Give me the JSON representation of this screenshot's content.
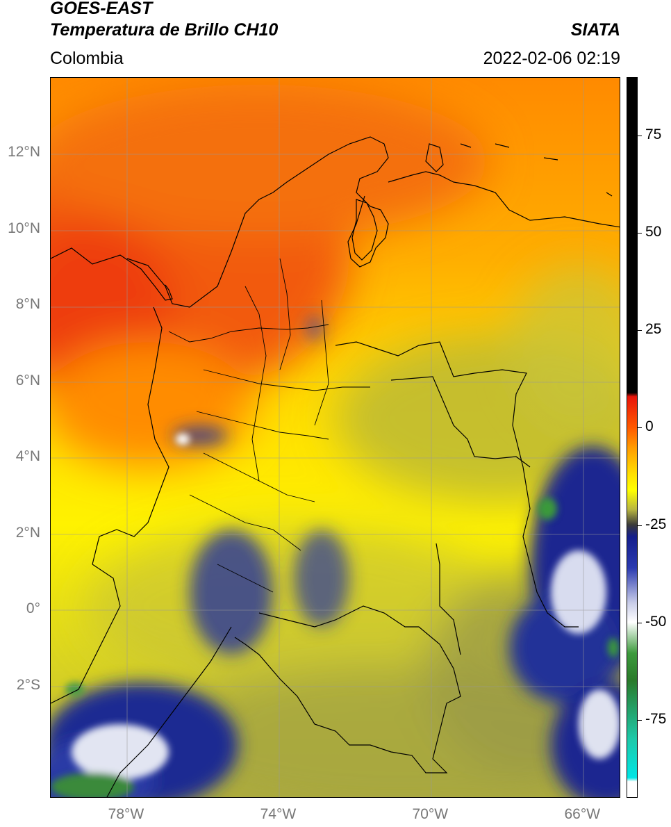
{
  "header": {
    "satellite": "GOES-EAST",
    "product": "Temperatura de Brillo CH10",
    "agency": "SIATA",
    "region": "Colombia",
    "timestamp": "2022-02-06 02:19"
  },
  "map": {
    "extent": {
      "lon_min": -80,
      "lon_max": -65,
      "lat_min": -5,
      "lat_max": 14
    },
    "lat_ticks": [
      {
        "value": 12,
        "label": "12°N"
      },
      {
        "value": 10,
        "label": "10°N"
      },
      {
        "value": 8,
        "label": "8°N"
      },
      {
        "value": 6,
        "label": "6°N"
      },
      {
        "value": 4,
        "label": "4°N"
      },
      {
        "value": 2,
        "label": "2°N"
      },
      {
        "value": 0,
        "label": "0°"
      },
      {
        "value": -2,
        "label": "2°S"
      }
    ],
    "lon_ticks": [
      {
        "value": -78,
        "label": "78°W"
      },
      {
        "value": -74,
        "label": "74°W"
      },
      {
        "value": -70,
        "label": "70°W"
      },
      {
        "value": -66,
        "label": "66°W"
      }
    ],
    "grid": true
  },
  "colorbar": {
    "range": [
      -95,
      90
    ],
    "ticks": [
      {
        "value": 75,
        "label": "75"
      },
      {
        "value": 50,
        "label": "50"
      },
      {
        "value": 25,
        "label": "25"
      },
      {
        "value": 0,
        "label": "0"
      },
      {
        "value": -25,
        "label": "-25"
      },
      {
        "value": -50,
        "label": "-50"
      },
      {
        "value": -75,
        "label": "-75"
      }
    ],
    "stops": [
      {
        "value": 90,
        "color": "#000000"
      },
      {
        "value": 9,
        "color": "#000000"
      },
      {
        "value": 8,
        "color": "#e8140a"
      },
      {
        "value": 0,
        "color": "#ff5a00"
      },
      {
        "value": -5,
        "color": "#ff9a00"
      },
      {
        "value": -12,
        "color": "#ffe000"
      },
      {
        "value": -16,
        "color": "#ffff00"
      },
      {
        "value": -21,
        "color": "#b8b640"
      },
      {
        "value": -25,
        "color": "#3a3a3a"
      },
      {
        "value": -28,
        "color": "#141e8c"
      },
      {
        "value": -36,
        "color": "#2a3ab0"
      },
      {
        "value": -45,
        "color": "#c8cce8"
      },
      {
        "value": -50,
        "color": "#ffffff"
      },
      {
        "value": -58,
        "color": "#3c9a3c"
      },
      {
        "value": -65,
        "color": "#2a7a2a"
      },
      {
        "value": -80,
        "color": "#1ec8a8"
      },
      {
        "value": -90,
        "color": "#00e5e5"
      },
      {
        "value": -91,
        "color": "#ffffff"
      },
      {
        "value": -95,
        "color": "#ffffff"
      }
    ]
  },
  "colors": {
    "warm_red": "#f24a0c",
    "orange": "#ff8c00",
    "yellow": "#ffee00",
    "olive": "#b4b43c",
    "navy": "#1a237e",
    "blue": "#3040b0",
    "white": "#ffffff",
    "green": "#3a8a3a"
  }
}
